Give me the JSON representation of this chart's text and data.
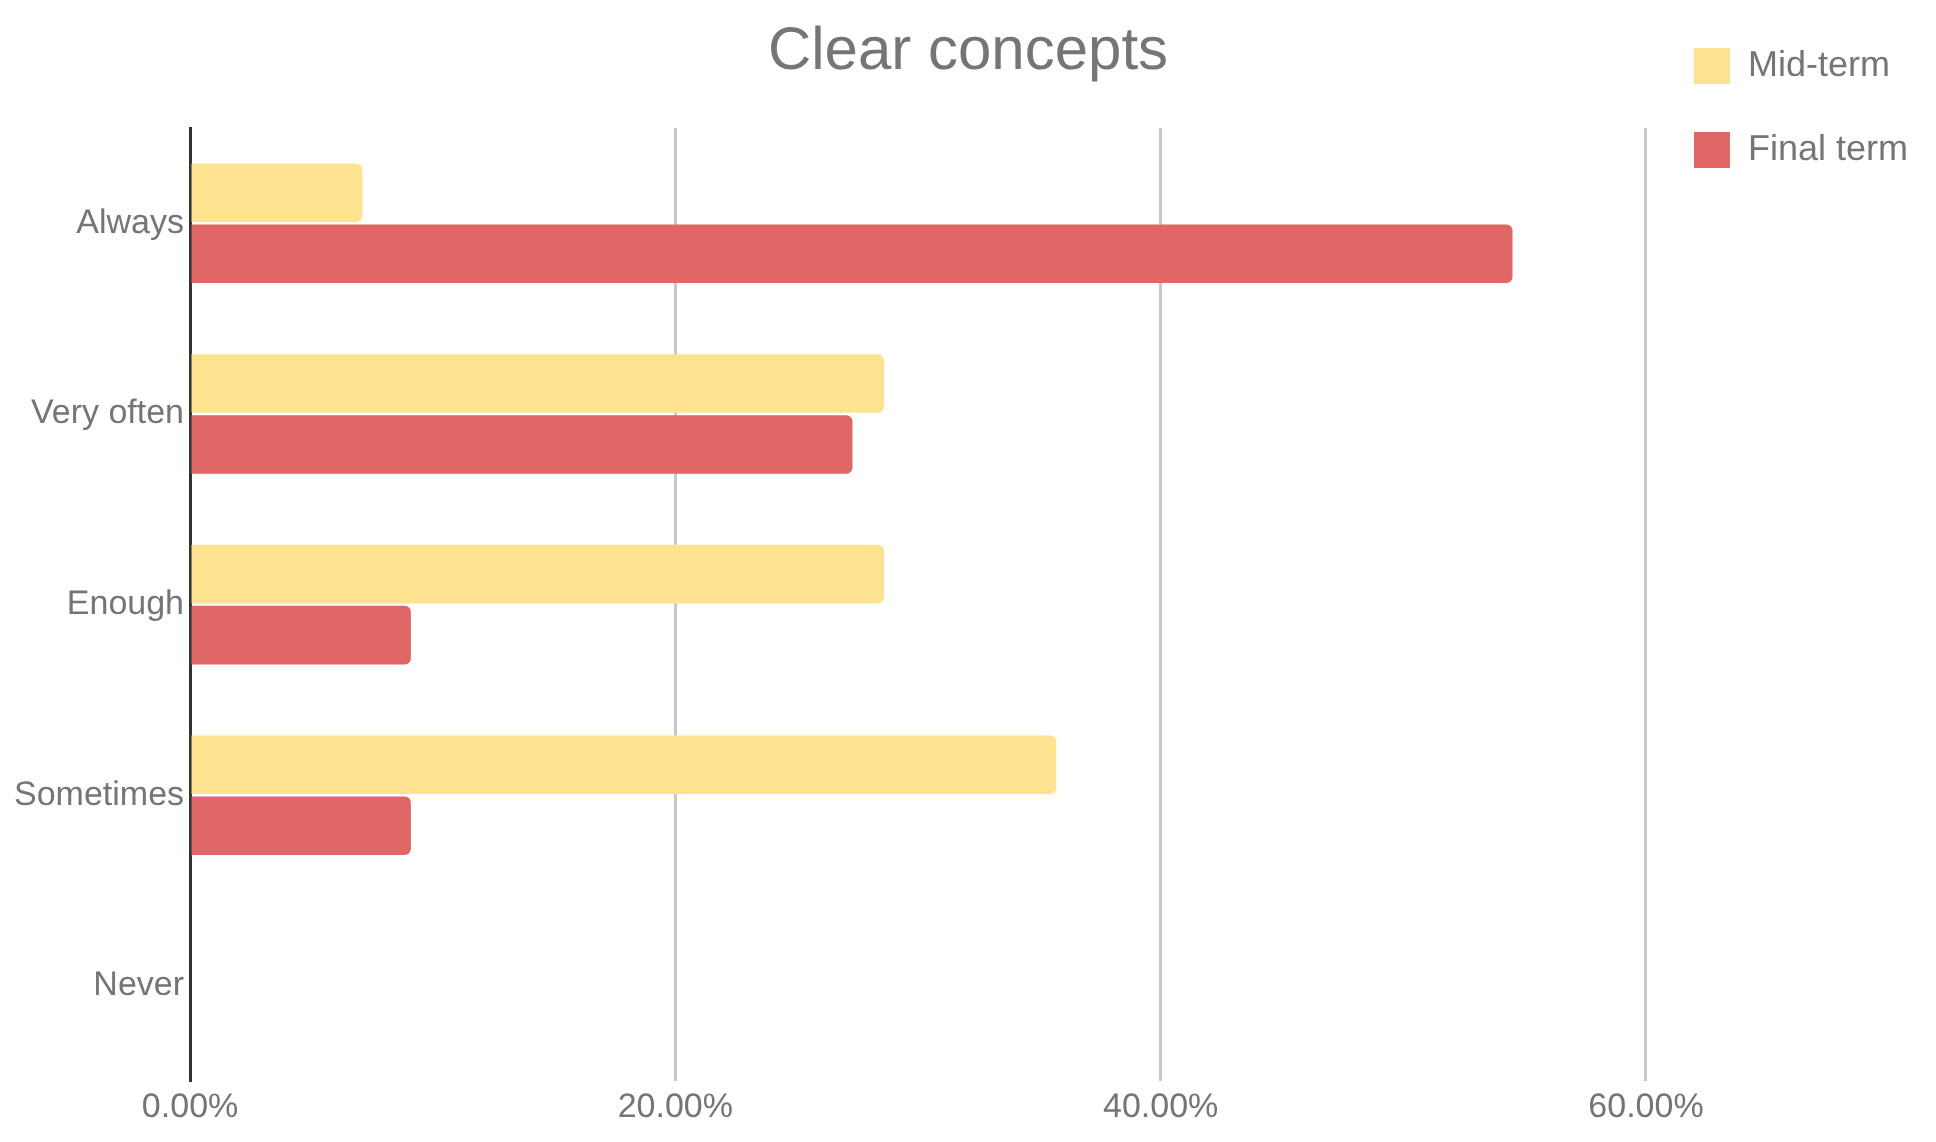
{
  "chart_data": {
    "type": "bar",
    "orientation": "horizontal",
    "title": "Clear concepts",
    "categories": [
      "Always",
      "Very often",
      "Enough",
      "Sometimes",
      "Never"
    ],
    "series": [
      {
        "name": "Mid-term",
        "color": "#fde290",
        "values": [
          7.1,
          28.6,
          28.6,
          35.7,
          0
        ]
      },
      {
        "name": "Final term",
        "color": "#e06666",
        "values": [
          54.5,
          27.3,
          9.1,
          9.1,
          0
        ]
      }
    ],
    "xlim": [
      0,
      60
    ],
    "xticks": [
      {
        "value": 0,
        "label": "0.00%"
      },
      {
        "value": 20,
        "label": "20.00%"
      },
      {
        "value": 40,
        "label": "40.00%"
      },
      {
        "value": 60,
        "label": "60.00%"
      }
    ],
    "grid": "x",
    "legend": "top right"
  }
}
